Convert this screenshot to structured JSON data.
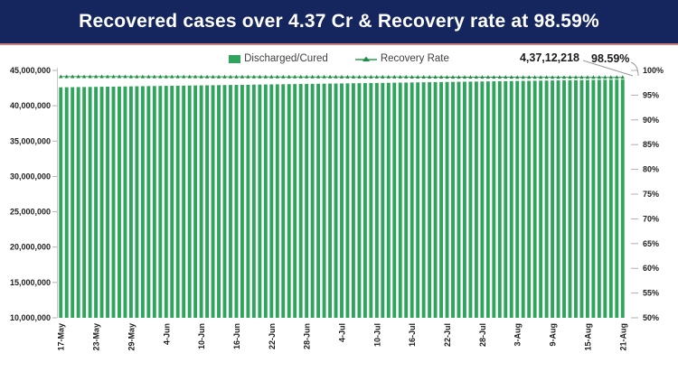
{
  "header": {
    "title": "Recovered cases over 4.37 Cr & Recovery rate at 98.59%",
    "bg_color": "#15265E",
    "accent_line_color": "#C9837B"
  },
  "legend": {
    "bar_label": "Discharged/Cured",
    "line_label": "Recovery Rate"
  },
  "annotations": {
    "total_recovered": "4,37,12,218",
    "recovery_rate": "98.59%"
  },
  "colors": {
    "bar_green": "#2FA45C",
    "line_green": "#27A04F",
    "marker_green": "#1E8C45",
    "axis_text": "#1f1f1f",
    "tick_gray": "#b0b0b0",
    "leader_gray": "#999999",
    "background": "#ffffff"
  },
  "chart_data": {
    "type": "bar+line",
    "title": "Recovered cases over 4.37 Cr & Recovery rate at 98.59%",
    "n_points": 97,
    "x_label_every": 6,
    "x_tick_labels": [
      "17-May",
      "23-May",
      "29-May",
      "4-Jun",
      "10-Jun",
      "16-Jun",
      "22-Jun",
      "28-Jun",
      "4-Jul",
      "10-Jul",
      "16-Jul",
      "22-Jul",
      "28-Jul",
      "3-Aug",
      "9-Aug",
      "15-Aug",
      "21-Aug"
    ],
    "left_axis": {
      "min": 10000000,
      "max": 45000000,
      "tick_step": 5000000,
      "tick_labels": [
        "45,000,000",
        "40,000,000",
        "35,000,000",
        "30,000,000",
        "25,000,000",
        "20,000,000",
        "15,000,000",
        "10,000,000"
      ]
    },
    "right_axis": {
      "min": 50,
      "max": 100,
      "tick_step": 5,
      "tick_labels": [
        "100%",
        "95%",
        "90%",
        "85%",
        "80%",
        "75%",
        "70%",
        "65%",
        "60%",
        "55%",
        "50%"
      ]
    },
    "grid": false,
    "legend_position": "top",
    "series": [
      {
        "name": "Discharged/Cured",
        "type": "bar",
        "axis": "left",
        "color": "#2FA45C",
        "last_value_label": "4,37,12,218",
        "values": [
          42608000,
          42619500,
          42631000,
          42642500,
          42654000,
          42665500,
          42677000,
          42688500,
          42700000,
          42711500,
          42723000,
          42734500,
          42746000,
          42757500,
          42769000,
          42780500,
          42792000,
          42803500,
          42815000,
          42826500,
          42838000,
          42849500,
          42861000,
          42872500,
          42884000,
          42895500,
          42907000,
          42918500,
          42930000,
          42941500,
          42953000,
          42964500,
          42976000,
          42987500,
          42999000,
          43010500,
          43022000,
          43033500,
          43045000,
          43056500,
          43068000,
          43079500,
          43091000,
          43102500,
          43114000,
          43125500,
          43137000,
          43148500,
          43160000,
          43171500,
          43183000,
          43194500,
          43206000,
          43217500,
          43229000,
          43240500,
          43252000,
          43263500,
          43275000,
          43286500,
          43298000,
          43309500,
          43321000,
          43332500,
          43344000,
          43355500,
          43367000,
          43378500,
          43390000,
          43401500,
          43413000,
          43424500,
          43436000,
          43447500,
          43459000,
          43470500,
          43482000,
          43493500,
          43505000,
          43516500,
          43528000,
          43539500,
          43551000,
          43562500,
          43574000,
          43585500,
          43597000,
          43608500,
          43620000,
          43631500,
          43643000,
          43654500,
          43666000,
          43677500,
          43689000,
          43700500,
          43712218
        ]
      },
      {
        "name": "Recovery Rate",
        "type": "line",
        "axis": "right",
        "color": "#27A04F",
        "marker": "triangle-up",
        "last_value_label": "98.59%",
        "values": [
          98.75,
          98.75,
          98.75,
          98.75,
          98.75,
          98.75,
          98.74,
          98.74,
          98.74,
          98.74,
          98.74,
          98.74,
          98.73,
          98.73,
          98.73,
          98.73,
          98.73,
          98.73,
          98.72,
          98.72,
          98.72,
          98.72,
          98.72,
          98.72,
          98.71,
          98.71,
          98.71,
          98.71,
          98.71,
          98.71,
          98.7,
          98.7,
          98.7,
          98.7,
          98.7,
          98.7,
          98.69,
          98.69,
          98.69,
          98.69,
          98.69,
          98.69,
          98.68,
          98.68,
          98.68,
          98.68,
          98.68,
          98.68,
          98.67,
          98.67,
          98.67,
          98.67,
          98.67,
          98.67,
          98.66,
          98.66,
          98.66,
          98.66,
          98.66,
          98.66,
          98.65,
          98.65,
          98.65,
          98.65,
          98.65,
          98.65,
          98.64,
          98.64,
          98.64,
          98.64,
          98.64,
          98.64,
          98.63,
          98.63,
          98.63,
          98.63,
          98.63,
          98.63,
          98.62,
          98.62,
          98.62,
          98.62,
          98.62,
          98.62,
          98.61,
          98.61,
          98.61,
          98.61,
          98.61,
          98.61,
          98.6,
          98.6,
          98.6,
          98.6,
          98.6,
          98.6,
          98.59
        ]
      }
    ]
  }
}
